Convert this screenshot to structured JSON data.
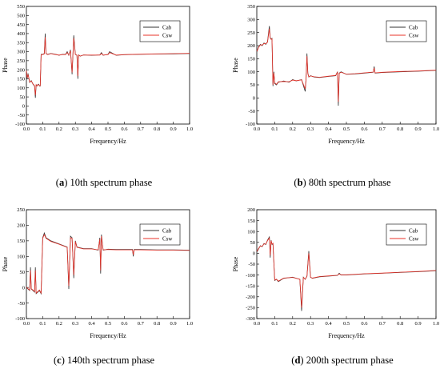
{
  "legend": [
    "Cab",
    "Csw"
  ],
  "colors": {
    "Cab": "#333333",
    "Csw": "#e8332a"
  },
  "chart_data": [
    {
      "type": "line",
      "caption_letter": "a",
      "caption_text": " 10th spectrum phase",
      "xlabel": "Frequency/Hz",
      "ylabel": "Phase",
      "xlim": [
        0,
        1.0
      ],
      "ylim": [
        -100,
        550
      ],
      "xticks": [
        "0.0",
        "0.1",
        "0.2",
        "0.3",
        "0.4",
        "0.5",
        "0.6",
        "0.7",
        "0.8",
        "0.9",
        "1.0"
      ],
      "yticks": [
        "-100",
        "-50",
        "0",
        "50",
        "100",
        "150",
        "200",
        "250",
        "300",
        "350",
        "400",
        "450",
        "500",
        "550"
      ],
      "legend_position": "top-right",
      "series": [
        {
          "name": "Cab",
          "x": [
            0.0,
            0.005,
            0.01,
            0.02,
            0.03,
            0.04,
            0.05,
            0.055,
            0.06,
            0.065,
            0.07,
            0.075,
            0.08,
            0.085,
            0.09,
            0.1,
            0.11,
            0.115,
            0.12,
            0.13,
            0.15,
            0.18,
            0.2,
            0.22,
            0.24,
            0.25,
            0.26,
            0.27,
            0.28,
            0.29,
            0.3,
            0.31,
            0.315,
            0.32,
            0.33,
            0.35,
            0.4,
            0.45,
            0.46,
            0.47,
            0.5,
            0.51,
            0.55,
            0.6,
            0.7,
            0.8,
            0.9,
            1.0
          ],
          "y": [
            200,
            150,
            180,
            130,
            140,
            120,
            110,
            45,
            115,
            110,
            118,
            120,
            110,
            110,
            285,
            285,
            290,
            400,
            290,
            285,
            290,
            285,
            280,
            285,
            285,
            300,
            280,
            310,
            175,
            390,
            285,
            280,
            150,
            282,
            275,
            282,
            280,
            282,
            295,
            280,
            285,
            300,
            280,
            283,
            285,
            287,
            288,
            290
          ]
        },
        {
          "name": "Csw",
          "x": [
            0.0,
            0.005,
            0.01,
            0.02,
            0.03,
            0.04,
            0.05,
            0.055,
            0.06,
            0.065,
            0.07,
            0.075,
            0.08,
            0.085,
            0.09,
            0.1,
            0.11,
            0.115,
            0.12,
            0.13,
            0.15,
            0.18,
            0.2,
            0.22,
            0.24,
            0.25,
            0.26,
            0.27,
            0.28,
            0.29,
            0.3,
            0.31,
            0.315,
            0.32,
            0.33,
            0.35,
            0.4,
            0.45,
            0.46,
            0.47,
            0.5,
            0.51,
            0.55,
            0.6,
            0.7,
            0.8,
            0.9,
            1.0
          ],
          "y": [
            195,
            155,
            175,
            132,
            138,
            122,
            112,
            60,
            118,
            112,
            116,
            118,
            112,
            112,
            283,
            284,
            288,
            380,
            289,
            284,
            289,
            284,
            281,
            284,
            284,
            295,
            281,
            305,
            185,
            375,
            284,
            281,
            165,
            281,
            276,
            281,
            281,
            281,
            290,
            281,
            284,
            295,
            281,
            284,
            286,
            288,
            289,
            291
          ]
        }
      ]
    },
    {
      "type": "line",
      "caption_letter": "b",
      "caption_text": " 80th spectrum phase",
      "xlabel": "Frequency/Hz",
      "ylabel": "Phase",
      "xlim": [
        0,
        1.0
      ],
      "ylim": [
        -100,
        350
      ],
      "xticks": [
        "0.0",
        "0.1",
        "0.2",
        "0.3",
        "0.4",
        "0.5",
        "0.6",
        "0.7",
        "0.8",
        "0.9",
        "1.0"
      ],
      "yticks": [
        "-100",
        "-50",
        "0",
        "50",
        "100",
        "150",
        "200",
        "250",
        "300",
        "350"
      ],
      "legend_position": "top-right",
      "series": [
        {
          "name": "Cab",
          "x": [
            0.0,
            0.01,
            0.02,
            0.03,
            0.04,
            0.05,
            0.06,
            0.07,
            0.075,
            0.08,
            0.085,
            0.09,
            0.095,
            0.1,
            0.11,
            0.12,
            0.15,
            0.18,
            0.2,
            0.22,
            0.25,
            0.27,
            0.275,
            0.28,
            0.285,
            0.29,
            0.3,
            0.32,
            0.35,
            0.4,
            0.44,
            0.45,
            0.455,
            0.46,
            0.47,
            0.5,
            0.55,
            0.6,
            0.65,
            0.655,
            0.66,
            0.7,
            0.8,
            0.9,
            1.0
          ],
          "y": [
            175,
            195,
            205,
            200,
            210,
            205,
            215,
            275,
            230,
            225,
            228,
            45,
            100,
            55,
            50,
            60,
            65,
            60,
            70,
            65,
            70,
            25,
            75,
            170,
            95,
            80,
            85,
            80,
            78,
            82,
            85,
            100,
            -30,
            95,
            100,
            90,
            92,
            95,
            98,
            120,
            95,
            97,
            100,
            102,
            105
          ]
        },
        {
          "name": "Csw",
          "x": [
            0.0,
            0.01,
            0.02,
            0.03,
            0.04,
            0.05,
            0.06,
            0.07,
            0.075,
            0.08,
            0.085,
            0.09,
            0.095,
            0.1,
            0.11,
            0.12,
            0.15,
            0.18,
            0.2,
            0.22,
            0.25,
            0.27,
            0.275,
            0.28,
            0.285,
            0.29,
            0.3,
            0.32,
            0.35,
            0.4,
            0.44,
            0.45,
            0.455,
            0.46,
            0.47,
            0.5,
            0.55,
            0.6,
            0.65,
            0.655,
            0.66,
            0.7,
            0.8,
            0.9,
            1.0
          ],
          "y": [
            178,
            193,
            203,
            202,
            208,
            207,
            213,
            265,
            228,
            224,
            226,
            50,
            95,
            58,
            52,
            62,
            63,
            62,
            68,
            66,
            69,
            35,
            74,
            160,
            93,
            81,
            84,
            81,
            79,
            83,
            86,
            98,
            -15,
            94,
            98,
            91,
            93,
            96,
            99,
            115,
            96,
            98,
            101,
            103,
            106
          ]
        }
      ]
    },
    {
      "type": "line",
      "caption_letter": "c",
      "caption_text": " 140th spectrum phase",
      "xlabel": "Frequency/Hz",
      "ylabel": "Phase",
      "xlim": [
        0,
        1.0
      ],
      "ylim": [
        -100,
        250
      ],
      "xticks": [
        "0.0",
        "0.1",
        "0.2",
        "0.3",
        "0.4",
        "0.5",
        "0.6",
        "0.7",
        "0.8",
        "0.9",
        "1.0"
      ],
      "yticks": [
        "-100",
        "-50",
        "0",
        "50",
        "100",
        "150",
        "200",
        "250"
      ],
      "legend_position": "top-right",
      "series": [
        {
          "name": "Cab",
          "x": [
            0.0,
            0.01,
            0.02,
            0.025,
            0.03,
            0.04,
            0.05,
            0.055,
            0.06,
            0.07,
            0.08,
            0.09,
            0.1,
            0.11,
            0.12,
            0.15,
            0.2,
            0.25,
            0.26,
            0.27,
            0.28,
            0.29,
            0.3,
            0.31,
            0.35,
            0.4,
            0.44,
            0.45,
            0.455,
            0.46,
            0.47,
            0.5,
            0.55,
            0.6,
            0.65,
            0.655,
            0.66,
            0.7,
            0.8,
            0.9,
            1.0
          ],
          "y": [
            0,
            -5,
            -10,
            65,
            -5,
            -10,
            -15,
            65,
            -20,
            -15,
            -10,
            -20,
            160,
            175,
            160,
            150,
            140,
            130,
            -5,
            165,
            160,
            30,
            150,
            130,
            125,
            125,
            120,
            160,
            45,
            170,
            120,
            123,
            122,
            122,
            122,
            100,
            122,
            122,
            121,
            121,
            120
          ]
        },
        {
          "name": "Csw",
          "x": [
            0.0,
            0.01,
            0.02,
            0.025,
            0.03,
            0.04,
            0.05,
            0.055,
            0.06,
            0.07,
            0.08,
            0.09,
            0.1,
            0.11,
            0.12,
            0.15,
            0.2,
            0.25,
            0.26,
            0.27,
            0.28,
            0.29,
            0.3,
            0.31,
            0.35,
            0.4,
            0.44,
            0.45,
            0.455,
            0.46,
            0.47,
            0.5,
            0.55,
            0.6,
            0.65,
            0.655,
            0.66,
            0.7,
            0.8,
            0.9,
            1.0
          ],
          "y": [
            2,
            -4,
            -8,
            55,
            -4,
            -8,
            -13,
            55,
            -18,
            -13,
            -8,
            -18,
            158,
            170,
            158,
            148,
            139,
            129,
            5,
            160,
            158,
            40,
            148,
            129,
            124,
            124,
            121,
            155,
            55,
            165,
            121,
            122,
            121,
            121,
            121,
            105,
            121,
            121,
            120,
            120,
            119
          ]
        }
      ]
    },
    {
      "type": "line",
      "caption_letter": "d",
      "caption_text": " 200th spectrum phase",
      "xlabel": "Frequency/Hz",
      "ylabel": "Phase",
      "xlim": [
        0,
        1.0
      ],
      "ylim": [
        -300,
        200
      ],
      "xticks": [
        "0.0",
        "0.1",
        "0.2",
        "0.3",
        "0.4",
        "0.5",
        "0.6",
        "0.7",
        "0.8",
        "0.9",
        "1.0"
      ],
      "yticks": [
        "-300",
        "-250",
        "-200",
        "-150",
        "-100",
        "-50",
        "0",
        "50",
        "100",
        "150",
        "200"
      ],
      "legend_position": "top-right",
      "series": [
        {
          "name": "Cab",
          "x": [
            0.0,
            0.01,
            0.02,
            0.03,
            0.04,
            0.05,
            0.06,
            0.07,
            0.075,
            0.08,
            0.085,
            0.09,
            0.1,
            0.11,
            0.12,
            0.15,
            0.2,
            0.24,
            0.25,
            0.26,
            0.27,
            0.28,
            0.29,
            0.3,
            0.31,
            0.35,
            0.4,
            0.45,
            0.46,
            0.47,
            0.5,
            0.6,
            0.7,
            0.8,
            0.9,
            1.0
          ],
          "y": [
            5,
            20,
            35,
            30,
            45,
            40,
            60,
            75,
            -20,
            60,
            40,
            45,
            -125,
            -120,
            -130,
            -115,
            -110,
            -120,
            -265,
            -110,
            -120,
            -105,
            10,
            -110,
            -115,
            -108,
            -105,
            -102,
            -92,
            -100,
            -100,
            -95,
            -92,
            -88,
            -85,
            -80
          ]
        },
        {
          "name": "Csw",
          "x": [
            0.0,
            0.01,
            0.02,
            0.03,
            0.04,
            0.05,
            0.06,
            0.07,
            0.075,
            0.08,
            0.085,
            0.09,
            0.1,
            0.11,
            0.12,
            0.15,
            0.2,
            0.24,
            0.25,
            0.26,
            0.27,
            0.28,
            0.29,
            0.3,
            0.31,
            0.35,
            0.4,
            0.45,
            0.46,
            0.47,
            0.5,
            0.6,
            0.7,
            0.8,
            0.9,
            1.0
          ],
          "y": [
            8,
            22,
            33,
            32,
            43,
            42,
            58,
            70,
            -10,
            58,
            42,
            46,
            -123,
            -119,
            -128,
            -114,
            -111,
            -119,
            -250,
            -111,
            -119,
            -106,
            0,
            -111,
            -114,
            -107,
            -104,
            -101,
            -95,
            -99,
            -99,
            -94,
            -91,
            -87,
            -84,
            -79
          ]
        }
      ]
    }
  ]
}
